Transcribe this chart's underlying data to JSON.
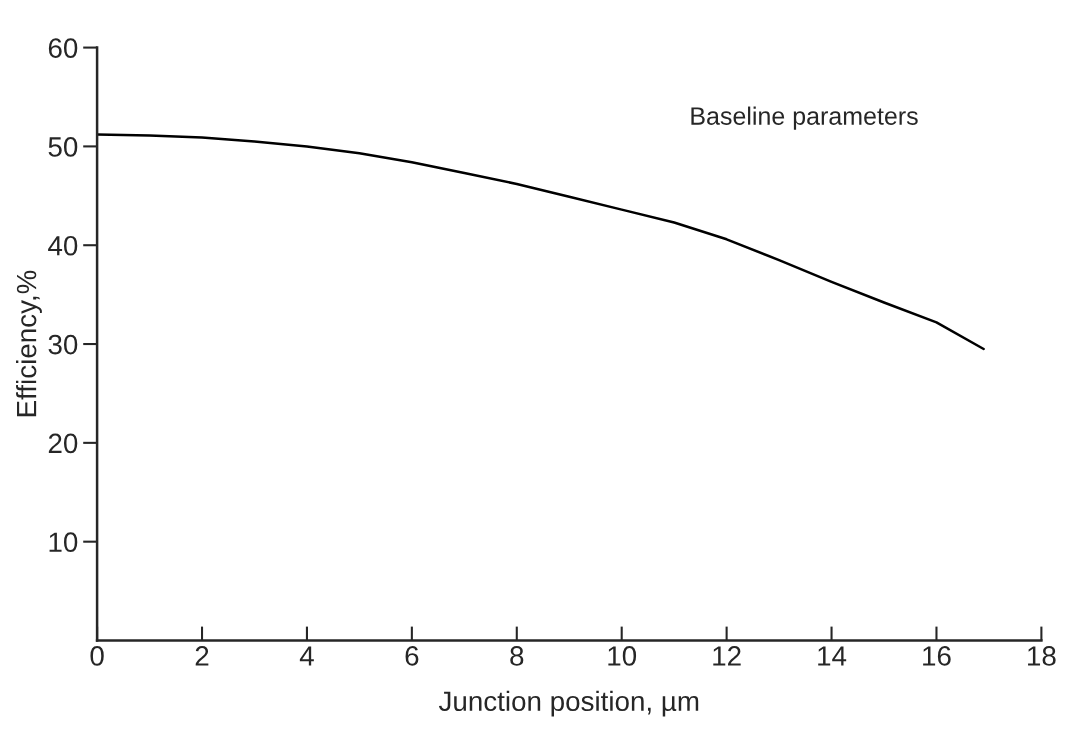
{
  "chart_data": {
    "type": "line",
    "xlabel": "Junction position, µm",
    "ylabel": "Efficiency,%",
    "x": [
      0,
      1,
      2,
      3,
      4,
      5,
      6,
      7,
      8,
      9,
      10,
      11,
      12,
      13,
      14,
      15,
      16,
      16.9
    ],
    "series": [
      {
        "color": "#000000",
        "values": [
          51.2,
          51.1,
          50.9,
          50.5,
          50.0,
          49.3,
          48.4,
          47.3,
          46.2,
          44.9,
          43.6,
          42.3,
          40.6,
          38.5,
          36.3,
          34.2,
          32.2,
          29.5
        ]
      }
    ],
    "xlim": [
      0,
      18
    ],
    "xticks": [
      0,
      2,
      4,
      6,
      8,
      10,
      12,
      14,
      16,
      18
    ],
    "ylim": [
      0,
      60
    ],
    "yticks": [
      10,
      20,
      30,
      40,
      50,
      60
    ],
    "annotations": [
      "Baseline parameters"
    ],
    "grid": false,
    "legend": false,
    "marker": "none",
    "line_style": "solid"
  }
}
